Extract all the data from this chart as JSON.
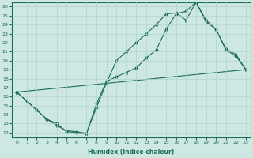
{
  "xlabel": "Humidex (Indice chaleur)",
  "ylabel": "",
  "xlim": [
    -0.5,
    23.5
  ],
  "ylim": [
    11.5,
    26.5
  ],
  "xticks": [
    0,
    1,
    2,
    3,
    4,
    5,
    6,
    7,
    8,
    9,
    10,
    11,
    12,
    13,
    14,
    15,
    16,
    17,
    18,
    19,
    20,
    21,
    22,
    23
  ],
  "yticks": [
    12,
    13,
    14,
    15,
    16,
    17,
    18,
    19,
    20,
    21,
    22,
    23,
    24,
    25,
    26
  ],
  "bg_color": "#cde8e2",
  "line_color": "#1a6b5a",
  "grid_color": "#b0d4cc",
  "line1_x": [
    0,
    1,
    2,
    3,
    4,
    5,
    6,
    7,
    8,
    9,
    10,
    11,
    12,
    13,
    14,
    15,
    16,
    17,
    18,
    19,
    20,
    21,
    22,
    23
  ],
  "line1_y": [
    16.5,
    15.5,
    14.5,
    13.5,
    13.0,
    12.1,
    12.0,
    11.9,
    15.2,
    17.7,
    18.2,
    18.7,
    19.2,
    20.3,
    21.2,
    23.5,
    25.2,
    25.5,
    26.5,
    24.5,
    23.5,
    21.3,
    20.7,
    19.0
  ],
  "line2_x": [
    0,
    2,
    3,
    4,
    5,
    6,
    7,
    8,
    9,
    10,
    11,
    12,
    13,
    14,
    15,
    16,
    17,
    18,
    19,
    20,
    21,
    22,
    23
  ],
  "line2_y": [
    16.5,
    14.5,
    13.5,
    12.8,
    12.2,
    12.1,
    11.9,
    14.8,
    17.5,
    20.0,
    21.0,
    22.0,
    23.0,
    24.0,
    25.2,
    25.3,
    24.5,
    26.5,
    24.3,
    23.5,
    21.2,
    20.5,
    19.0
  ],
  "line3_x": [
    0,
    23
  ],
  "line3_y": [
    16.5,
    19.0
  ]
}
